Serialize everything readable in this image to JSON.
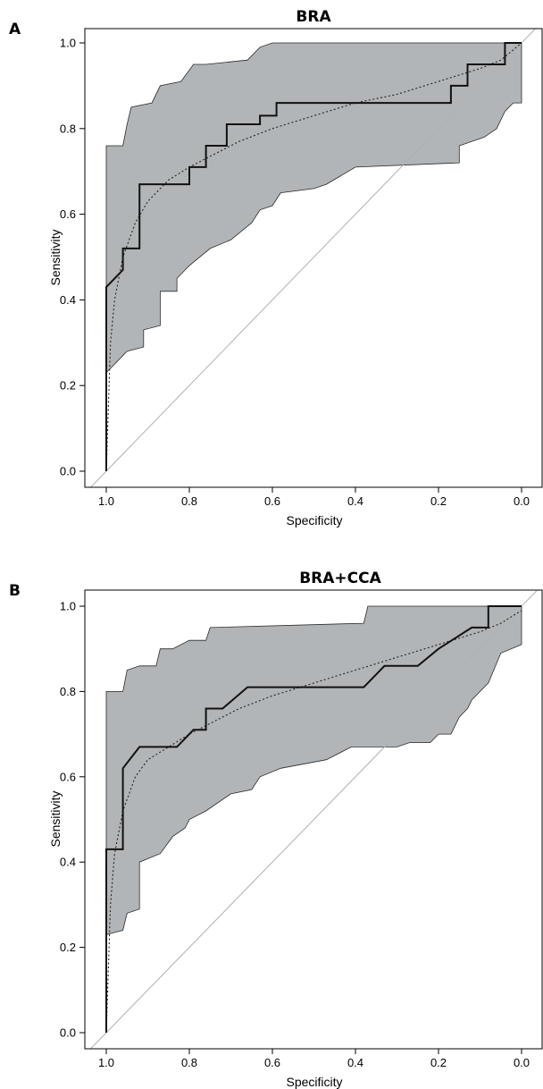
{
  "chart_data": [
    {
      "type": "line",
      "panel_letter": "A",
      "title": "BRA",
      "xlabel": "Specificity",
      "ylabel": "Sensitivity",
      "x_reversed": true,
      "xlim": [
        1.0,
        0.0
      ],
      "ylim": [
        0.0,
        1.0
      ],
      "xticks": [
        "1.0",
        "0.8",
        "0.6",
        "0.4",
        "0.2",
        "0.0"
      ],
      "yticks": [
        "0.0",
        "0.2",
        "0.4",
        "0.6",
        "0.8",
        "1.0"
      ],
      "grid": false,
      "colors": {
        "band": "#b2b5b7",
        "roc": "#111111",
        "smooth": "#222222",
        "diagonal": "#b0b0b0"
      },
      "series": [
        {
          "kind": "roc-empirical",
          "x": [
            1.0,
            1.0,
            0.96,
            0.96,
            0.92,
            0.92,
            0.8,
            0.8,
            0.76,
            0.76,
            0.71,
            0.71,
            0.63,
            0.63,
            0.59,
            0.59,
            0.21,
            0.21,
            0.17,
            0.17,
            0.13,
            0.13,
            0.04,
            0.04,
            0.0
          ],
          "y": [
            0.0,
            0.43,
            0.47,
            0.52,
            0.52,
            0.67,
            0.67,
            0.71,
            0.71,
            0.76,
            0.76,
            0.81,
            0.81,
            0.83,
            0.83,
            0.86,
            0.86,
            0.86,
            0.86,
            0.9,
            0.9,
            0.95,
            0.95,
            1.0,
            1.0
          ]
        },
        {
          "kind": "roc-smoothed",
          "x": [
            1.0,
            0.99,
            0.98,
            0.96,
            0.93,
            0.9,
            0.85,
            0.8,
            0.74,
            0.68,
            0.6,
            0.5,
            0.4,
            0.3,
            0.2,
            0.1,
            0.05,
            0.0
          ],
          "y": [
            0.0,
            0.3,
            0.4,
            0.5,
            0.58,
            0.63,
            0.68,
            0.71,
            0.74,
            0.77,
            0.8,
            0.83,
            0.86,
            0.88,
            0.91,
            0.94,
            0.96,
            1.0
          ]
        },
        {
          "kind": "ci-band",
          "x_upper": [
            1.0,
            0.96,
            0.95,
            0.94,
            0.89,
            0.87,
            0.82,
            0.79,
            0.77,
            0.76,
            0.66,
            0.64,
            0.63,
            0.6,
            0.59,
            0.0
          ],
          "upper": [
            0.76,
            0.76,
            0.81,
            0.85,
            0.86,
            0.9,
            0.91,
            0.95,
            0.95,
            0.95,
            0.96,
            0.98,
            0.99,
            1.0,
            1.0,
            1.0
          ],
          "x_lower": [
            0.0,
            0.0,
            0.02,
            0.04,
            0.06,
            0.09,
            0.15,
            0.15,
            0.4,
            0.47,
            0.5,
            0.58,
            0.6,
            0.63,
            0.65,
            0.7,
            0.75,
            0.8,
            0.81,
            0.83,
            0.83,
            0.87,
            0.87,
            0.91,
            0.91,
            0.95,
            0.96,
            1.0
          ],
          "lower": [
            1.0,
            0.86,
            0.86,
            0.84,
            0.8,
            0.78,
            0.76,
            0.72,
            0.71,
            0.67,
            0.66,
            0.65,
            0.62,
            0.61,
            0.58,
            0.54,
            0.52,
            0.48,
            0.47,
            0.45,
            0.42,
            0.42,
            0.34,
            0.33,
            0.29,
            0.28,
            0.27,
            0.23
          ]
        }
      ]
    },
    {
      "type": "line",
      "panel_letter": "B",
      "title": "BRA+CCA",
      "xlabel": "Specificity",
      "ylabel": "Sensitivity",
      "x_reversed": true,
      "xlim": [
        1.0,
        0.0
      ],
      "ylim": [
        0.0,
        1.0
      ],
      "xticks": [
        "1.0",
        "0.8",
        "0.6",
        "0.4",
        "0.2",
        "0.0"
      ],
      "yticks": [
        "0.0",
        "0.2",
        "0.4",
        "0.6",
        "0.8",
        "1.0"
      ],
      "grid": false,
      "colors": {
        "band": "#b2b5b7",
        "roc": "#111111",
        "smooth": "#222222",
        "diagonal": "#b0b0b0"
      },
      "series": [
        {
          "kind": "roc-empirical",
          "x": [
            1.0,
            1.0,
            0.96,
            0.96,
            0.92,
            0.83,
            0.79,
            0.76,
            0.76,
            0.72,
            0.66,
            0.38,
            0.33,
            0.25,
            0.2,
            0.12,
            0.08,
            0.08,
            0.0
          ],
          "y": [
            0.0,
            0.43,
            0.43,
            0.62,
            0.67,
            0.67,
            0.71,
            0.71,
            0.76,
            0.76,
            0.81,
            0.81,
            0.86,
            0.86,
            0.9,
            0.95,
            0.95,
            1.0,
            1.0
          ]
        },
        {
          "kind": "roc-smoothed",
          "x": [
            1.0,
            0.99,
            0.98,
            0.96,
            0.93,
            0.9,
            0.85,
            0.8,
            0.74,
            0.68,
            0.6,
            0.5,
            0.4,
            0.3,
            0.2,
            0.1,
            0.05,
            0.0
          ],
          "y": [
            0.0,
            0.3,
            0.42,
            0.52,
            0.6,
            0.64,
            0.67,
            0.7,
            0.73,
            0.76,
            0.79,
            0.82,
            0.85,
            0.88,
            0.91,
            0.94,
            0.96,
            0.99
          ]
        },
        {
          "kind": "ci-band",
          "x_upper": [
            1.0,
            0.96,
            0.95,
            0.92,
            0.88,
            0.87,
            0.84,
            0.8,
            0.76,
            0.75,
            0.38,
            0.37,
            0.35,
            0.0
          ],
          "upper": [
            0.8,
            0.8,
            0.85,
            0.86,
            0.86,
            0.9,
            0.9,
            0.92,
            0.92,
            0.95,
            0.96,
            1.0,
            1.0,
            1.0
          ],
          "x_lower": [
            0.0,
            0.0,
            0.05,
            0.08,
            0.12,
            0.13,
            0.15,
            0.17,
            0.2,
            0.22,
            0.27,
            0.3,
            0.41,
            0.47,
            0.58,
            0.63,
            0.65,
            0.7,
            0.76,
            0.8,
            0.81,
            0.84,
            0.87,
            0.92,
            0.92,
            0.95,
            0.96,
            1.0
          ],
          "lower": [
            1.0,
            0.91,
            0.89,
            0.82,
            0.78,
            0.76,
            0.74,
            0.7,
            0.7,
            0.68,
            0.68,
            0.67,
            0.67,
            0.64,
            0.62,
            0.6,
            0.57,
            0.56,
            0.52,
            0.5,
            0.48,
            0.46,
            0.42,
            0.4,
            0.29,
            0.28,
            0.24,
            0.23
          ]
        }
      ]
    }
  ]
}
